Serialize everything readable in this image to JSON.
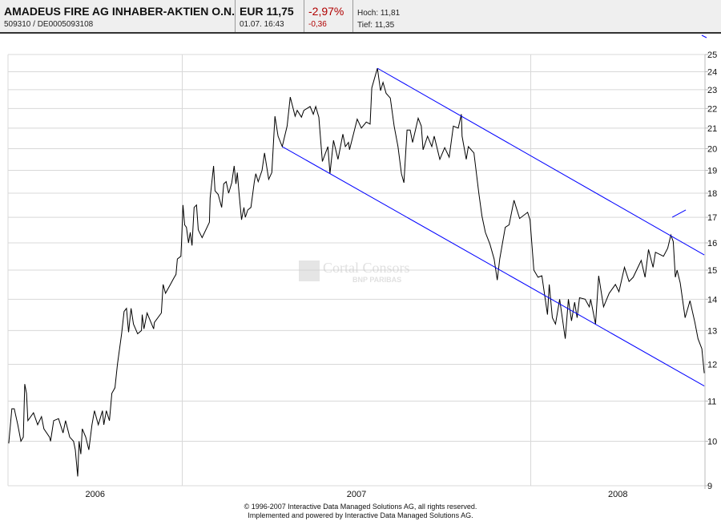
{
  "header": {
    "name": "AMADEUS FIRE AG INHABER-AKTIEN O.N.",
    "ids": "509310  /  DE0005093108",
    "price": "EUR 11,75",
    "datetime": "01.07. 16:43",
    "change_pct": "-2,97%",
    "change_abs": "-0,36",
    "high": "Hoch: 11,81",
    "low": "Tief: 11,35"
  },
  "watermark": {
    "brand": "Cortal Consors",
    "sub": "BNP PARIBAS"
  },
  "footer": {
    "line1": "© 1996-2007 Interactive Data Managed Solutions AG, all rights reserved.",
    "line2": "Implemented and powered by  Interactive Data Managed Solutions AG."
  },
  "colors": {
    "price_line": "#000000",
    "trend_line": "#0000ff",
    "grid": "#d8d8d8",
    "negative": "#b00000"
  },
  "chart_data": {
    "type": "line",
    "y_scale": "log",
    "ylim": [
      9,
      25
    ],
    "y_ticks": [
      9,
      10,
      11,
      12,
      13,
      14,
      15,
      16,
      17,
      18,
      19,
      20,
      21,
      22,
      23,
      24,
      25
    ],
    "y_axis_side": "right",
    "xlim": [
      2006.5,
      2008.5
    ],
    "x_gridlines": [
      2007.0,
      2008.0
    ],
    "x_labels": [
      {
        "text": "2006",
        "at": 2006.75
      },
      {
        "text": "2007",
        "at": 2007.5
      },
      {
        "text": "2008",
        "at": 2008.25
      }
    ],
    "grid": true,
    "series": [
      {
        "x": [
          2006.502,
          2006.511,
          2006.518,
          2006.528,
          2006.537,
          2006.544,
          2006.548,
          2006.553,
          2006.557,
          2006.573,
          2006.585,
          2006.596,
          2006.603,
          2006.619,
          2006.622,
          2006.631,
          2006.645,
          2006.658,
          2006.665,
          2006.677,
          2006.688,
          2006.693,
          2006.7,
          2006.704,
          2006.709,
          2006.713,
          2006.723,
          2006.732,
          2006.741,
          2006.748,
          2006.759,
          2006.771,
          2006.775,
          2006.782,
          2006.791,
          2006.798,
          2006.807,
          2006.814,
          2006.826,
          2006.833,
          2006.84,
          2006.846,
          2006.853,
          2006.86,
          2006.872,
          2006.883,
          2006.885,
          2006.89,
          2006.899,
          2006.918,
          2006.92,
          2006.94,
          2006.945,
          2006.952,
          2006.966,
          2006.975,
          2006.982,
          2006.986,
          2006.996,
          2006.998,
          2007.002,
          2007.007,
          2007.012,
          2007.018,
          2007.023,
          2007.028,
          2007.034,
          2007.041,
          2007.046,
          2007.057,
          2007.078,
          2007.08,
          2007.09,
          2007.094,
          2007.103,
          2007.113,
          2007.119,
          2007.126,
          2007.133,
          2007.142,
          2007.149,
          2007.154,
          2007.158,
          2007.163,
          2007.17,
          2007.177,
          2007.181,
          2007.188,
          2007.197,
          2007.207,
          2007.211,
          2007.218,
          2007.229,
          2007.236,
          2007.248,
          2007.257,
          2007.266,
          2007.275,
          2007.287,
          2007.301,
          2007.31,
          2007.324,
          2007.33,
          2007.342,
          2007.349,
          2007.367,
          2007.376,
          2007.383,
          2007.392,
          2007.402,
          2007.418,
          2007.424,
          2007.434,
          2007.447,
          2007.461,
          2007.468,
          2007.477,
          2007.48,
          2007.502,
          2007.514,
          2007.528,
          2007.539,
          2007.544,
          2007.56,
          2007.569,
          2007.576,
          2007.585,
          2007.597,
          2007.608,
          2007.619,
          2007.629,
          2007.636,
          2007.645,
          2007.654,
          2007.661,
          2007.677,
          2007.686,
          2007.691,
          2007.704,
          2007.716,
          2007.723,
          2007.739,
          2007.753,
          2007.766,
          2007.778,
          2007.792,
          2007.801,
          2007.803,
          2007.815,
          2007.821,
          2007.837,
          2007.851,
          2007.86,
          2007.87,
          2007.883,
          2007.895,
          2007.904,
          2007.911,
          2007.927,
          2007.938,
          2007.952,
          2007.968,
          2007.991,
          2007.998,
          2008.009,
          2008.021,
          2008.032,
          2008.048,
          2008.053,
          2008.062,
          2008.071,
          2008.083,
          2008.099,
          2008.108,
          2008.117,
          2008.126,
          2008.133,
          2008.14,
          2008.156,
          2008.168,
          2008.172,
          2008.186,
          2008.195,
          2008.209,
          2008.225,
          2008.243,
          2008.253,
          2008.269,
          2008.282,
          2008.294,
          2008.317,
          2008.328,
          2008.338,
          2008.351,
          2008.358,
          2008.381,
          2008.393,
          2008.402,
          2008.409,
          2008.415,
          2008.42,
          2008.429,
          2008.443,
          2008.457,
          2008.471,
          2008.48,
          2008.491,
          2008.498
        ],
        "y": [
          9.95,
          10.8,
          10.8,
          10.4,
          10.0,
          10.1,
          11.45,
          11.2,
          10.5,
          10.7,
          10.4,
          10.6,
          10.3,
          10.1,
          10.0,
          10.5,
          10.55,
          10.2,
          10.5,
          10.1,
          10.0,
          9.8,
          9.2,
          10.0,
          9.7,
          10.3,
          10.1,
          9.8,
          10.4,
          10.75,
          10.4,
          10.75,
          10.4,
          10.75,
          10.5,
          11.2,
          11.35,
          12.0,
          12.9,
          13.6,
          13.7,
          12.95,
          13.7,
          13.2,
          12.9,
          13.0,
          13.5,
          13.05,
          13.55,
          13.05,
          13.25,
          13.55,
          14.5,
          14.2,
          14.5,
          14.7,
          14.85,
          15.4,
          15.5,
          16.0,
          17.5,
          16.7,
          16.6,
          16.0,
          16.4,
          15.9,
          17.4,
          17.5,
          16.5,
          16.2,
          16.8,
          17.8,
          19.2,
          18.1,
          17.95,
          17.4,
          18.4,
          18.5,
          18.0,
          18.45,
          19.2,
          18.4,
          18.9,
          18.0,
          16.9,
          17.4,
          17.0,
          17.3,
          17.4,
          18.5,
          18.85,
          18.5,
          19.0,
          19.8,
          18.6,
          18.9,
          21.6,
          20.6,
          20.1,
          21.1,
          22.6,
          21.6,
          21.9,
          21.55,
          21.9,
          22.1,
          21.7,
          22.1,
          21.55,
          19.4,
          20.1,
          18.85,
          20.4,
          19.5,
          20.7,
          20.1,
          20.3,
          19.95,
          21.45,
          21.0,
          21.3,
          21.2,
          23.1,
          24.2,
          22.95,
          23.4,
          22.8,
          22.55,
          21.1,
          20.1,
          18.85,
          18.45,
          20.9,
          20.9,
          20.3,
          21.5,
          21.1,
          19.95,
          20.6,
          20.1,
          20.6,
          19.5,
          20.05,
          19.6,
          21.1,
          21.0,
          21.7,
          20.6,
          19.5,
          20.1,
          19.8,
          18.0,
          17.05,
          16.4,
          15.95,
          15.4,
          14.65,
          15.4,
          16.6,
          16.7,
          17.7,
          16.95,
          17.2,
          16.9,
          15.0,
          14.75,
          14.8,
          13.5,
          14.5,
          13.4,
          13.2,
          14.0,
          12.75,
          14.0,
          13.3,
          13.9,
          13.4,
          14.05,
          14.0,
          13.75,
          14.0,
          13.2,
          14.8,
          13.75,
          14.2,
          14.5,
          14.25,
          15.1,
          14.6,
          14.75,
          15.35,
          14.75,
          15.75,
          15.1,
          15.65,
          15.5,
          15.8,
          16.3,
          16.05,
          14.75,
          15.0,
          14.55,
          13.4,
          13.95,
          13.25,
          12.75,
          12.45,
          11.75
        ]
      }
    ],
    "trend_lines": [
      {
        "from": [
          2007.56,
          24.2
        ],
        "to": [
          2008.498,
          15.55
        ]
      },
      {
        "from": [
          2007.287,
          20.1
        ],
        "to": [
          2008.498,
          11.4
        ]
      },
      {
        "from": [
          2008.406,
          17.0
        ],
        "to": [
          2008.445,
          17.3
        ]
      }
    ]
  }
}
